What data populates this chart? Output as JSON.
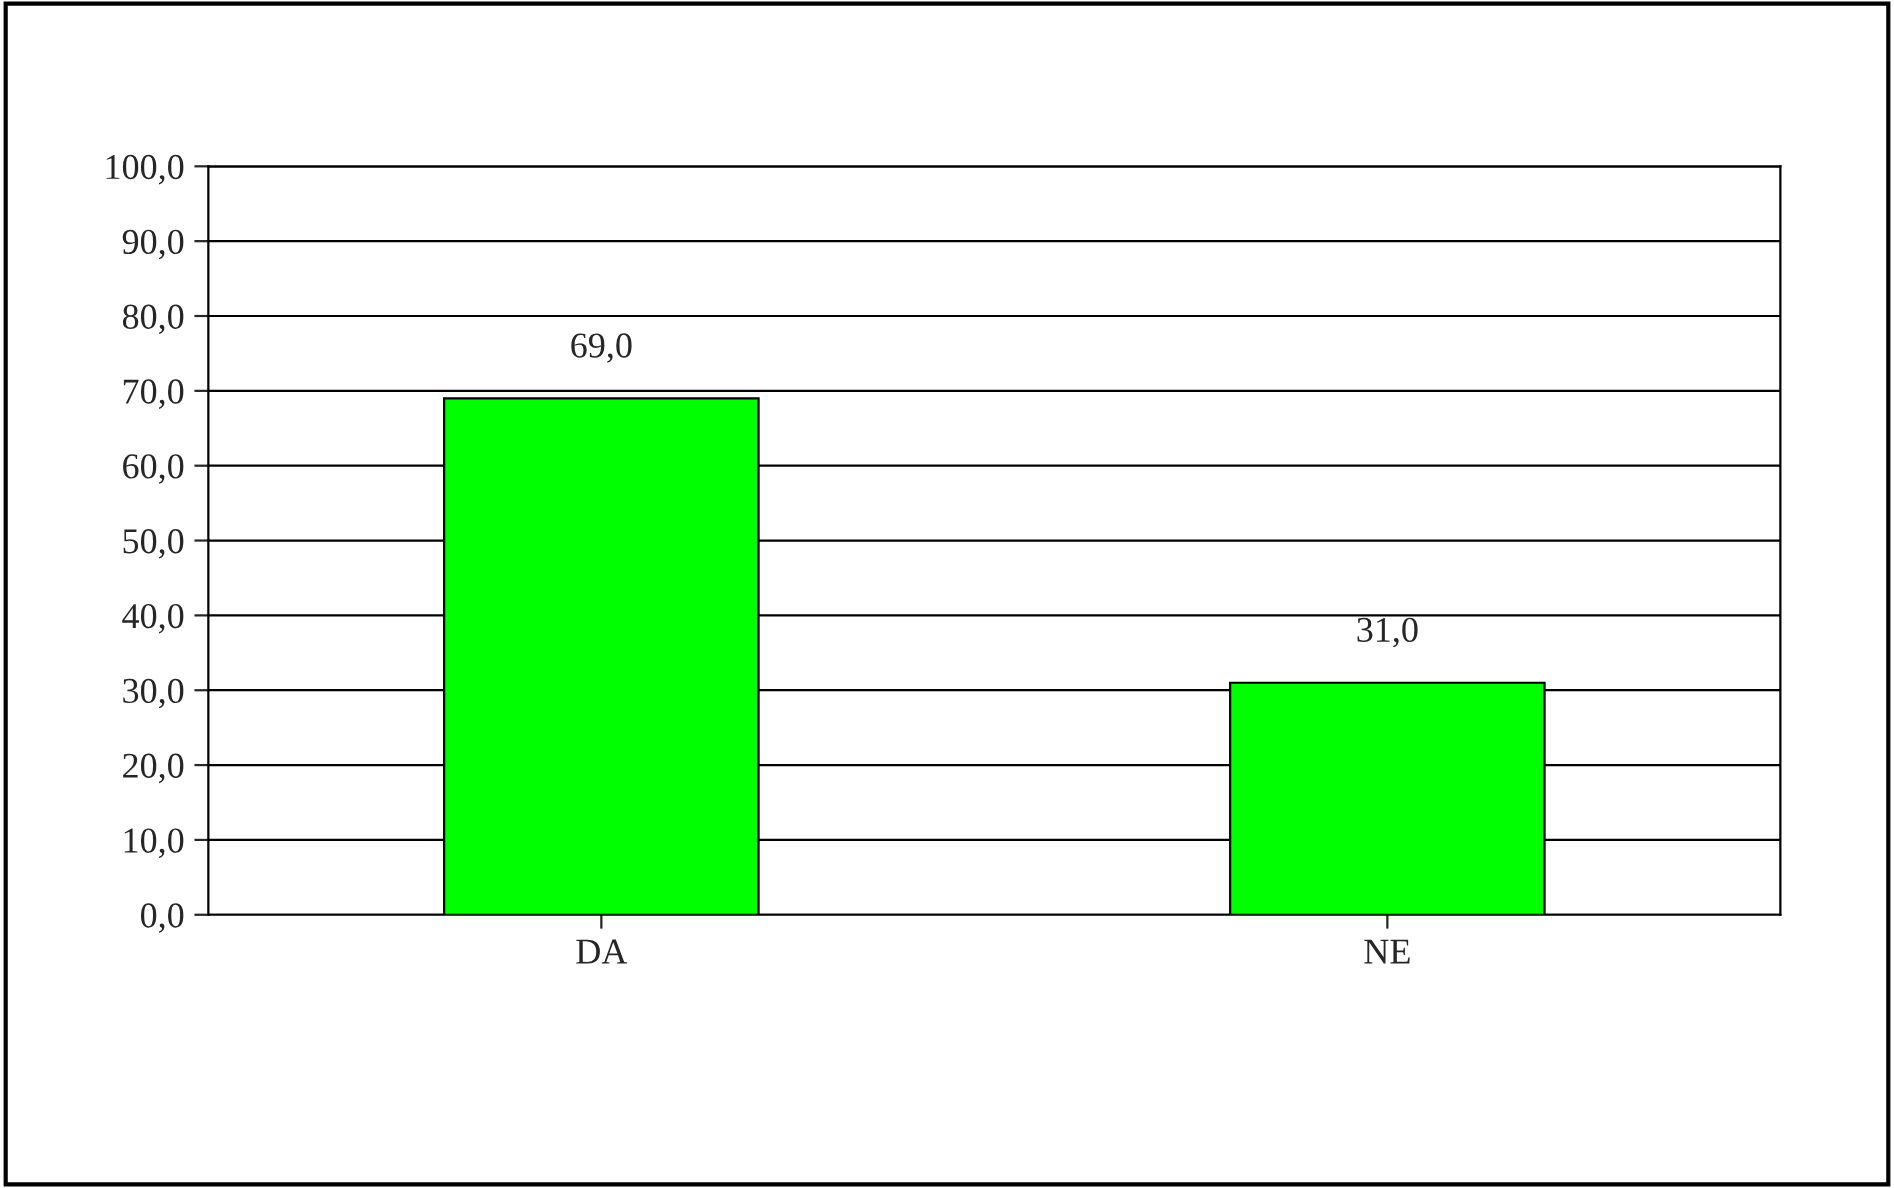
{
  "chart_data": {
    "type": "bar",
    "categories": [
      "DA",
      "NE"
    ],
    "values": [
      69.0,
      31.0
    ],
    "color": "#00ff00",
    "value_labels": [
      "69,0",
      "31,0"
    ],
    "ylim": [
      0,
      100
    ],
    "yticks": [
      {
        "value": 0,
        "label": "0,0"
      },
      {
        "value": 10,
        "label": "10,0"
      },
      {
        "value": 20,
        "label": "20,0"
      },
      {
        "value": 30,
        "label": "30,0"
      },
      {
        "value": 40,
        "label": "40,0"
      },
      {
        "value": 50,
        "label": "50,0"
      },
      {
        "value": 60,
        "label": "60,0"
      },
      {
        "value": 70,
        "label": "70,0"
      },
      {
        "value": 80,
        "label": "80,0"
      },
      {
        "value": 90,
        "label": "90,0"
      },
      {
        "value": 100,
        "label": "100,0"
      }
    ],
    "grid": "y"
  }
}
